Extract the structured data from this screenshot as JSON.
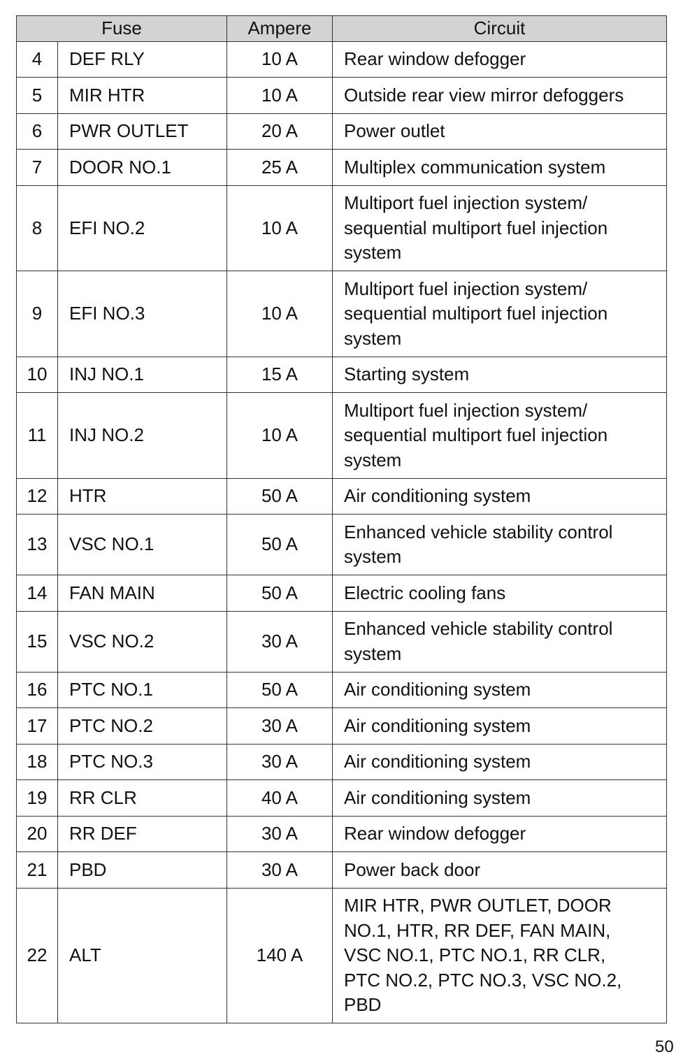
{
  "table": {
    "headers": [
      "Fuse",
      "Ampere",
      "Circuit"
    ],
    "rows": [
      {
        "no": 4,
        "fuse": "DEF RLY",
        "ampere": "10 A",
        "circuit": [
          "Rear window defogger"
        ]
      },
      {
        "no": 5,
        "fuse": "MIR HTR",
        "ampere": "10 A",
        "circuit": [
          "Outside rear view mirror defoggers"
        ]
      },
      {
        "no": 6,
        "fuse": "PWR OUTLET",
        "ampere": "20 A",
        "circuit": [
          "Power outlet"
        ]
      },
      {
        "no": 7,
        "fuse": "DOOR NO.1",
        "ampere": "25 A",
        "circuit": [
          "Multiplex communication system"
        ]
      },
      {
        "no": 8,
        "fuse": "EFI NO.2",
        "ampere": "10 A",
        "circuit": [
          "Multiport fuel injection system/",
          "sequential multiport fuel injection",
          "system"
        ]
      },
      {
        "no": 9,
        "fuse": "EFI NO.3",
        "ampere": "10 A",
        "circuit": [
          "Multiport fuel injection system/",
          "sequential multiport fuel injection",
          "system"
        ]
      },
      {
        "no": 10,
        "fuse": "INJ NO.1",
        "ampere": "15 A",
        "circuit": [
          "Starting system"
        ]
      },
      {
        "no": 11,
        "fuse": "INJ NO.2",
        "ampere": "10 A",
        "circuit": [
          "Multiport fuel injection system/",
          "sequential multiport fuel injection",
          "system"
        ]
      },
      {
        "no": 12,
        "fuse": "HTR",
        "ampere": "50 A",
        "circuit": [
          "Air conditioning system"
        ]
      },
      {
        "no": 13,
        "fuse": "VSC NO.1",
        "ampere": "50 A",
        "circuit": [
          "Enhanced vehicle stability control",
          "system"
        ]
      },
      {
        "no": 14,
        "fuse": "FAN MAIN",
        "ampere": "50 A",
        "circuit": [
          "Electric cooling fans"
        ]
      },
      {
        "no": 15,
        "fuse": "VSC NO.2",
        "ampere": "30 A",
        "circuit": [
          "Enhanced vehicle stability control",
          "system"
        ]
      },
      {
        "no": 16,
        "fuse": "PTC NO.1",
        "ampere": "50 A",
        "circuit": [
          "Air conditioning system"
        ]
      },
      {
        "no": 17,
        "fuse": "PTC NO.2",
        "ampere": "30 A",
        "circuit": [
          "Air conditioning system"
        ]
      },
      {
        "no": 18,
        "fuse": "PTC NO.3",
        "ampere": "30 A",
        "circuit": [
          "Air conditioning system"
        ]
      },
      {
        "no": 19,
        "fuse": "RR CLR",
        "ampere": "40 A",
        "circuit": [
          "Air conditioning system"
        ]
      },
      {
        "no": 20,
        "fuse": "RR DEF",
        "ampere": "30 A",
        "circuit": [
          "Rear window defogger"
        ]
      },
      {
        "no": 21,
        "fuse": "PBD",
        "ampere": "30 A",
        "circuit": [
          "Power back door"
        ]
      },
      {
        "no": 22,
        "fuse": "ALT",
        "ampere": "140 A",
        "circuit": [
          "MIR HTR, PWR OUTLET, DOOR",
          "NO.1, HTR, RR DEF, FAN MAIN,",
          "VSC NO.1, PTC NO.1, RR CLR,",
          "PTC NO.2, PTC NO.3, VSC NO.2,",
          "PBD"
        ]
      }
    ]
  },
  "page_number": "50"
}
